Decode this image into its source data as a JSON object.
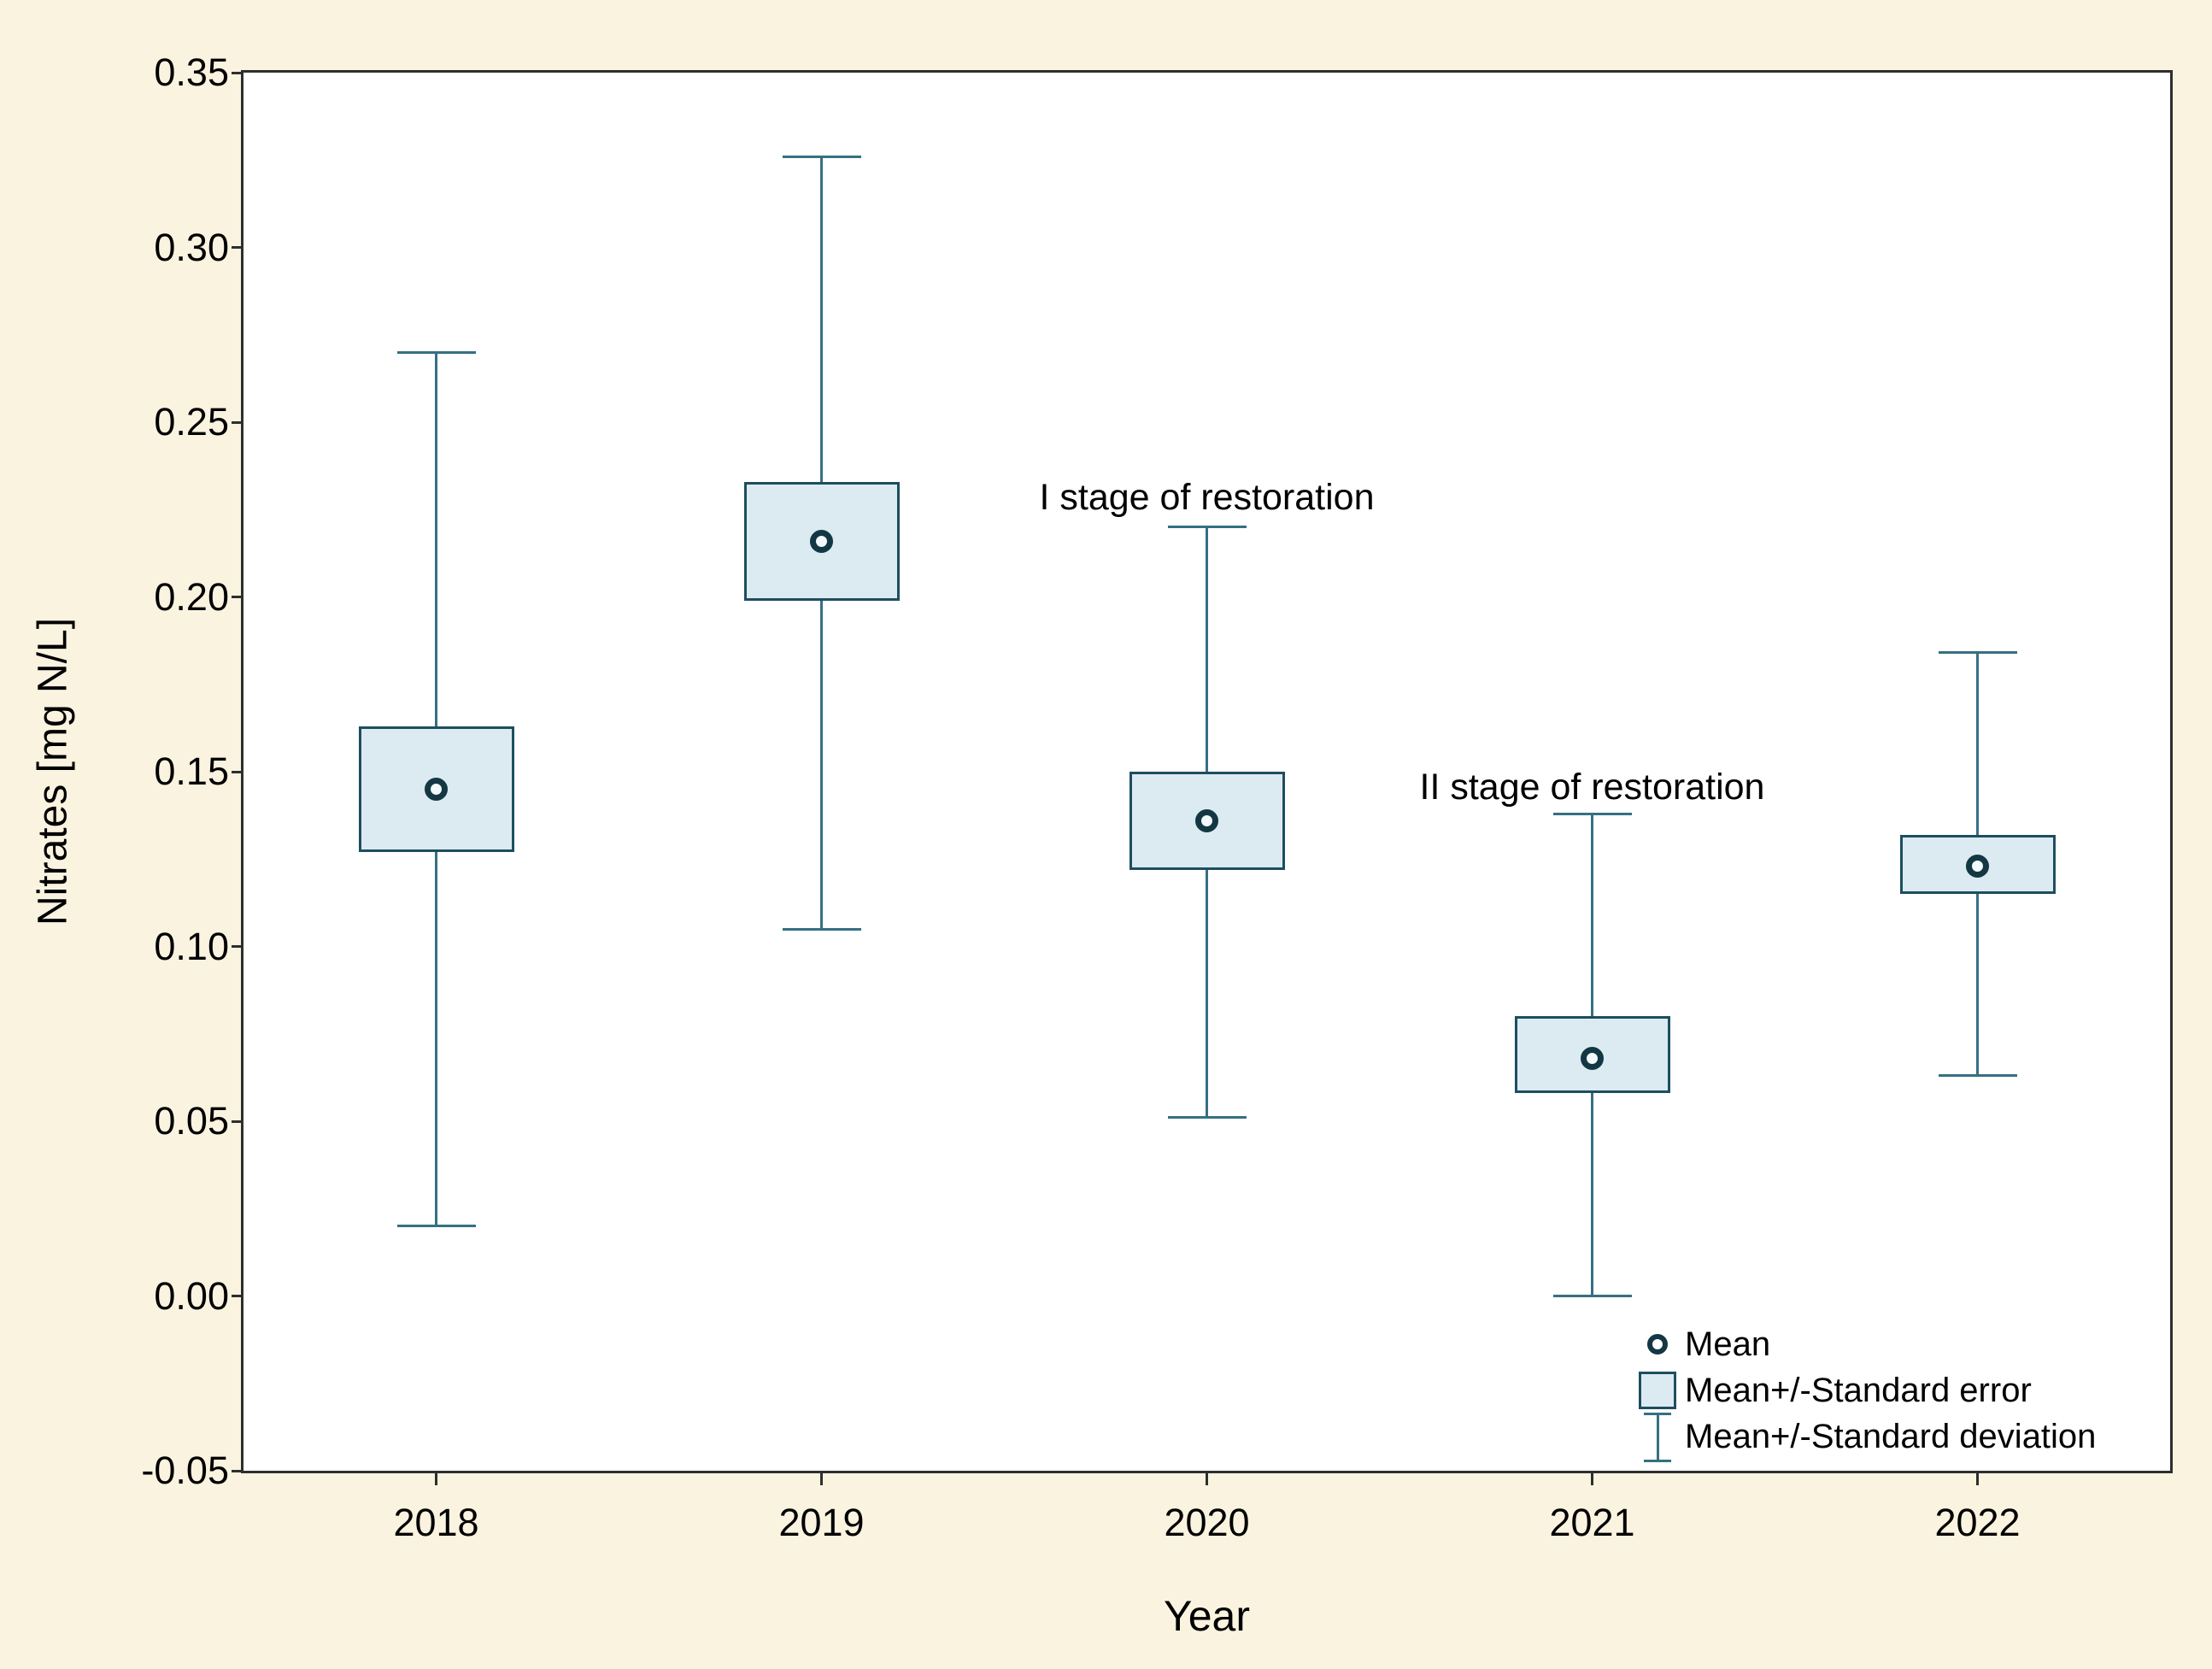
{
  "chart_data": {
    "type": "boxplot",
    "title": "",
    "xlabel": "Year",
    "ylabel": "Nitrates [mg N/L]",
    "categories": [
      "2018",
      "2019",
      "2020",
      "2021",
      "2022"
    ],
    "ylim": [
      -0.05,
      0.35
    ],
    "grid": false,
    "y_ticks": [
      {
        "label": "0.35",
        "value": 0.35
      },
      {
        "label": "0.30",
        "value": 0.3
      },
      {
        "label": "0.25",
        "value": 0.25
      },
      {
        "label": "0.20",
        "value": 0.2
      },
      {
        "label": "0.15",
        "value": 0.15
      },
      {
        "label": "0.10",
        "value": 0.1
      },
      {
        "label": "0.05",
        "value": 0.05
      },
      {
        "label": "0.00",
        "value": 0.0
      },
      {
        "label": "-0.05",
        "value": -0.05
      }
    ],
    "series": [
      {
        "category": "2018",
        "mean": 0.145,
        "se_low": 0.127,
        "se_high": 0.163,
        "sd_low": 0.02,
        "sd_high": 0.27
      },
      {
        "category": "2019",
        "mean": 0.216,
        "se_low": 0.199,
        "se_high": 0.233,
        "sd_low": 0.105,
        "sd_high": 0.326
      },
      {
        "category": "2020",
        "mean": 0.136,
        "se_low": 0.122,
        "se_high": 0.15,
        "sd_low": 0.051,
        "sd_high": 0.22
      },
      {
        "category": "2021",
        "mean": 0.068,
        "se_low": 0.058,
        "se_high": 0.08,
        "sd_low": 0.0,
        "sd_high": 0.138
      },
      {
        "category": "2022",
        "mean": 0.123,
        "se_low": 0.115,
        "se_high": 0.132,
        "sd_low": 0.063,
        "sd_high": 0.184
      }
    ],
    "annotations": [
      {
        "text": "I stage of restoration",
        "x_index": 2,
        "y_value": 0.228
      },
      {
        "text": "II stage of restoration",
        "x_index": 3,
        "y_value": 0.145
      }
    ],
    "legend": {
      "position": "bottom-right",
      "items": [
        {
          "symbol": "circle",
          "label": "Mean"
        },
        {
          "symbol": "box",
          "label": "Mean+/-Standard error"
        },
        {
          "symbol": "whisker",
          "label": "Mean+/-Standard deviation"
        }
      ]
    }
  },
  "colors": {
    "page_background": "#FAF3E0",
    "plot_background": "#FFFFFF",
    "frame": "#2E2E2E",
    "box_fill": "#DCEBF1",
    "box_border": "#1D4E60",
    "whisker": "#357082",
    "mean_ring": "#143744",
    "text": "#000000"
  }
}
